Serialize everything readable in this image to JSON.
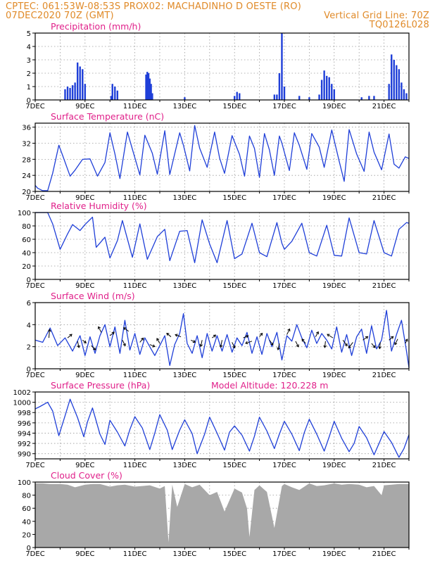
{
  "header": {
    "line1": "CPTEC:   061:53W-08:53S   PROX02: MACHADINHO D OESTE (RO)",
    "line2_left": "07DEC2020 70Z (GMT)",
    "line2_right": "Vertical Grid Line: 70Z",
    "line3_right": "TQ0126L028"
  },
  "colors": {
    "header": "#e08a28",
    "panel_title": "#e0208a",
    "series_line": "#1f3fd8",
    "cloud_fill": "#a8a8a8",
    "grid": "#9a9a9a",
    "axis": "#000000"
  },
  "chart_data": [
    {
      "type": "bar",
      "title": "Precipitation (mm/h)",
      "ylim": [
        0,
        5
      ],
      "yticks": [
        "0",
        "1",
        "2",
        "3",
        "4",
        "5"
      ],
      "xticks": [
        "7DEC",
        "9DEC",
        "11DEC",
        "13DEC",
        "15DEC",
        "17DEC",
        "19DEC",
        "21DEC"
      ],
      "x_range_days": [
        7,
        22
      ],
      "series": [
        {
          "x": [
            8.2,
            8.3,
            8.4,
            8.5,
            8.6,
            8.7,
            8.8,
            8.9,
            9.0,
            10.05,
            10.1,
            10.2,
            10.3,
            11.45,
            11.5,
            11.55,
            11.6,
            11.65,
            11.7,
            13.0,
            15.0,
            15.1,
            15.2,
            16.6,
            16.7,
            16.8,
            16.9,
            17.0,
            17.6,
            18.0,
            18.4,
            18.5,
            18.6,
            18.7,
            18.8,
            18.9,
            19.0,
            20.1,
            20.4,
            20.6,
            21.2,
            21.3,
            21.4,
            21.5,
            21.6,
            21.7,
            21.8,
            21.9
          ],
          "values": [
            0.8,
            1.0,
            0.9,
            1.1,
            1.3,
            2.8,
            2.5,
            2.3,
            1.2,
            0.3,
            1.2,
            1.0,
            0.7,
            1.9,
            2.1,
            2.0,
            1.6,
            1.2,
            0.5,
            0.2,
            0.3,
            0.6,
            0.5,
            0.4,
            0.4,
            2.0,
            5.0,
            1.0,
            0.3,
            0.2,
            0.4,
            1.5,
            2.2,
            1.8,
            1.7,
            1.2,
            0.8,
            0.2,
            0.3,
            0.3,
            1.2,
            3.4,
            3.0,
            2.6,
            2.3,
            1.3,
            0.8,
            0.5
          ]
        }
      ]
    },
    {
      "type": "line",
      "title": "Surface Temperature (nC)",
      "ylim": [
        20,
        37
      ],
      "yticks": [
        "20",
        "24",
        "28",
        "32",
        "36"
      ],
      "xticks": [
        "7DEC",
        "9DEC",
        "11DEC",
        "13DEC",
        "15DEC",
        "17DEC",
        "19DEC",
        "21DEC"
      ],
      "x_range_days": [
        7,
        22
      ],
      "series": [
        {
          "x": [
            7.0,
            7.1,
            7.3,
            7.5,
            7.7,
            7.95,
            8.1,
            8.4,
            8.6,
            8.9,
            9.2,
            9.5,
            9.8,
            10.0,
            10.2,
            10.4,
            10.7,
            10.9,
            11.2,
            11.4,
            11.7,
            11.9,
            12.2,
            12.4,
            12.8,
            12.95,
            13.2,
            13.4,
            13.6,
            13.9,
            14.2,
            14.4,
            14.6,
            14.9,
            15.2,
            15.4,
            15.6,
            15.8,
            16.0,
            16.2,
            16.4,
            16.6,
            16.8,
            16.9,
            17.2,
            17.4,
            17.6,
            17.9,
            18.1,
            18.4,
            18.6,
            18.9,
            19.2,
            19.4,
            19.6,
            19.9,
            20.2,
            20.4,
            20.6,
            20.9,
            21.2,
            21.4,
            21.6,
            21.85,
            22.0
          ],
          "values": [
            21.5,
            20.8,
            20.2,
            20.2,
            24.5,
            31.5,
            29.0,
            23.8,
            25.3,
            28.0,
            28.1,
            23.8,
            27.2,
            34.6,
            29.3,
            23.2,
            34.8,
            30.5,
            24.1,
            34.0,
            29.5,
            24.3,
            35.1,
            24.2,
            34.6,
            31.5,
            25.1,
            36.4,
            30.8,
            26.0,
            34.8,
            28.3,
            24.5,
            33.9,
            29.2,
            23.8,
            33.8,
            30.7,
            23.5,
            34.4,
            30.3,
            24.0,
            33.8,
            32.0,
            25.2,
            34.6,
            31.5,
            25.5,
            34.4,
            31.0,
            26.0,
            35.3,
            27.5,
            22.5,
            35.4,
            29.3,
            25.0,
            34.8,
            29.8,
            25.4,
            34.3,
            26.8,
            25.8,
            28.6,
            28.2
          ]
        }
      ]
    },
    {
      "type": "line",
      "title": "Relative Humidity (%)",
      "ylim": [
        0,
        100
      ],
      "yticks": [
        "0",
        "20",
        "40",
        "60",
        "80",
        "100"
      ],
      "xticks": [
        "7DEC",
        "9DEC",
        "11DEC",
        "13DEC",
        "15DEC",
        "17DEC",
        "19DEC",
        "21DEC"
      ],
      "x_range_days": [
        7,
        22
      ],
      "series": [
        {
          "x": [
            7.0,
            7.5,
            7.7,
            8.0,
            8.3,
            8.5,
            8.8,
            9.0,
            9.3,
            9.45,
            9.8,
            10.0,
            10.3,
            10.5,
            10.9,
            11.2,
            11.5,
            11.9,
            12.2,
            12.4,
            12.8,
            13.1,
            13.4,
            13.7,
            14.0,
            14.3,
            14.7,
            15.0,
            15.3,
            15.7,
            16.0,
            16.3,
            16.7,
            16.9,
            17.0,
            17.3,
            17.7,
            18.0,
            18.3,
            18.7,
            19.0,
            19.3,
            19.6,
            20.0,
            20.3,
            20.6,
            21.0,
            21.3,
            21.6,
            21.9,
            22.0
          ],
          "values": [
            100,
            100,
            83,
            45,
            68,
            82,
            73,
            82,
            93,
            48,
            63,
            32,
            58,
            88,
            33,
            83,
            30,
            64,
            75,
            28,
            72,
            73,
            25,
            89,
            53,
            25,
            88,
            31,
            38,
            84,
            40,
            34,
            85,
            54,
            45,
            57,
            84,
            40,
            35,
            81,
            36,
            35,
            92,
            40,
            38,
            88,
            40,
            35,
            75,
            85,
            84
          ]
        }
      ]
    },
    {
      "type": "line",
      "title": "Surface Wind (m/s)",
      "ylim": [
        0,
        6
      ],
      "yticks": [
        "0",
        "2",
        "4",
        "6"
      ],
      "xticks": [
        "7DEC",
        "9DEC",
        "11DEC",
        "13DEC",
        "15DEC",
        "17DEC",
        "19DEC",
        "21DEC"
      ],
      "x_range_days": [
        7,
        22
      ],
      "series": [
        {
          "x": [
            7.0,
            7.3,
            7.6,
            7.9,
            8.2,
            8.5,
            8.8,
            9.0,
            9.2,
            9.4,
            9.6,
            9.8,
            10.0,
            10.2,
            10.4,
            10.6,
            10.8,
            11.0,
            11.2,
            11.4,
            11.6,
            11.8,
            12.0,
            12.2,
            12.4,
            12.6,
            12.8,
            12.95,
            13.1,
            13.3,
            13.5,
            13.7,
            13.9,
            14.1,
            14.3,
            14.5,
            14.7,
            14.9,
            15.1,
            15.3,
            15.5,
            15.7,
            15.9,
            16.1,
            16.3,
            16.5,
            16.7,
            16.9,
            17.1,
            17.3,
            17.5,
            17.7,
            17.9,
            18.1,
            18.3,
            18.5,
            18.7,
            18.9,
            19.1,
            19.3,
            19.5,
            19.7,
            19.9,
            20.1,
            20.3,
            20.5,
            20.7,
            20.9,
            21.1,
            21.3,
            21.5,
            21.7,
            21.9,
            22.0
          ],
          "values": [
            2.6,
            2.4,
            3.7,
            2.1,
            2.8,
            1.6,
            3.0,
            1.2,
            2.9,
            1.4,
            3.0,
            4.0,
            2.0,
            3.8,
            1.4,
            4.4,
            1.7,
            3.2,
            1.3,
            2.8,
            2.0,
            1.2,
            2.1,
            3.0,
            0.3,
            2.2,
            3.2,
            5.0,
            2.3,
            1.4,
            3.0,
            1.0,
            3.2,
            1.6,
            3.0,
            1.6,
            3.1,
            1.5,
            2.8,
            2.1,
            3.3,
            1.4,
            2.9,
            1.3,
            3.2,
            2.0,
            3.3,
            0.8,
            3.0,
            2.5,
            4.0,
            2.8,
            1.9,
            3.5,
            2.3,
            3.2,
            2.6,
            1.8,
            3.8,
            1.5,
            3.1,
            1.2,
            2.9,
            3.6,
            1.4,
            3.9,
            1.8,
            2.6,
            5.3,
            1.6,
            3.1,
            4.4,
            1.6,
            0.1
          ]
        }
      ],
      "wind_vectors": [
        {
          "x": 7.55,
          "v": 2.8,
          "dx": 1,
          "dy": -12
        },
        {
          "x": 8.3,
          "v": 2.8,
          "dx": 6,
          "dy": -5
        },
        {
          "x": 8.7,
          "v": 2.5,
          "dx": 2,
          "dy": 9
        },
        {
          "x": 8.9,
          "v": 2.6,
          "dx": 5,
          "dy": 4
        },
        {
          "x": 9.25,
          "v": 2.1,
          "dx": 6,
          "dy": 6
        },
        {
          "x": 9.65,
          "v": 3.3,
          "dx": -4,
          "dy": -8
        },
        {
          "x": 10.0,
          "v": 3.0,
          "dx": 6,
          "dy": -5
        },
        {
          "x": 10.5,
          "v": 2.6,
          "dx": 4,
          "dy": 8
        },
        {
          "x": 10.75,
          "v": 3.4,
          "dx": -7,
          "dy": -5
        },
        {
          "x": 11.2,
          "v": 2.4,
          "dx": 5,
          "dy": -6
        },
        {
          "x": 11.6,
          "v": 2.2,
          "dx": 7,
          "dy": 3
        },
        {
          "x": 12.0,
          "v": 2.3,
          "dx": -4,
          "dy": -7
        },
        {
          "x": 12.45,
          "v": 2.9,
          "dx": -6,
          "dy": -5
        },
        {
          "x": 12.85,
          "v": 2.9,
          "dx": -8,
          "dy": -3
        },
        {
          "x": 13.25,
          "v": 2.6,
          "dx": 6,
          "dy": 3
        },
        {
          "x": 13.7,
          "v": 2.6,
          "dx": -2,
          "dy": 9
        },
        {
          "x": 14.1,
          "v": 2.8,
          "dx": 5,
          "dy": -4
        },
        {
          "x": 14.5,
          "v": 2.6,
          "dx": -2,
          "dy": 10
        },
        {
          "x": 14.9,
          "v": 2.4,
          "dx": 4,
          "dy": 8
        },
        {
          "x": 15.35,
          "v": 2.8,
          "dx": 7,
          "dy": -3
        },
        {
          "x": 15.7,
          "v": 2.5,
          "dx": -9,
          "dy": 3
        },
        {
          "x": 16.0,
          "v": 2.9,
          "dx": 4,
          "dy": -5
        },
        {
          "x": 16.4,
          "v": 2.6,
          "dx": 5,
          "dy": 7
        },
        {
          "x": 16.8,
          "v": 2.3,
          "dx": -2,
          "dy": 9
        },
        {
          "x": 17.1,
          "v": 3.1,
          "dx": 4,
          "dy": -8
        },
        {
          "x": 17.45,
          "v": 2.5,
          "dx": 4,
          "dy": 8
        },
        {
          "x": 17.85,
          "v": 2.3,
          "dx": -5,
          "dy": -6
        },
        {
          "x": 18.25,
          "v": 2.9,
          "dx": 4,
          "dy": -7
        },
        {
          "x": 18.65,
          "v": 2.5,
          "dx": -1,
          "dy": 9
        },
        {
          "x": 18.95,
          "v": 2.8,
          "dx": -8,
          "dy": -5
        },
        {
          "x": 19.35,
          "v": 2.6,
          "dx": 6,
          "dy": 8
        },
        {
          "x": 19.75,
          "v": 2.4,
          "dx": -6,
          "dy": 8
        },
        {
          "x": 20.15,
          "v": 2.6,
          "dx": 7,
          "dy": -5
        },
        {
          "x": 20.5,
          "v": 2.3,
          "dx": 5,
          "dy": 6
        },
        {
          "x": 20.85,
          "v": 2.4,
          "dx": -1,
          "dy": 9
        },
        {
          "x": 21.2,
          "v": 2.6,
          "dx": 6,
          "dy": -5
        },
        {
          "x": 21.55,
          "v": 2.7,
          "dx": -4,
          "dy": 8
        },
        {
          "x": 21.85,
          "v": 2.3,
          "dx": 3,
          "dy": -6
        }
      ]
    },
    {
      "type": "line",
      "title": "Surface Pressure (hPa)",
      "annotation": "Model Altitude: 120.228  m",
      "ylim": [
        989,
        1002
      ],
      "yticks": [
        "990",
        "992",
        "994",
        "996",
        "998",
        "1000",
        "1002"
      ],
      "xticks": [
        "7DEC",
        "9DEC",
        "11DEC",
        "13DEC",
        "15DEC",
        "17DEC",
        "19DEC",
        "21DEC"
      ],
      "x_range_days": [
        7,
        22
      ],
      "series": [
        {
          "x": [
            7.0,
            7.2,
            7.5,
            7.7,
            7.95,
            8.2,
            8.4,
            8.7,
            8.95,
            9.1,
            9.3,
            9.6,
            9.8,
            10.0,
            10.3,
            10.6,
            10.8,
            11.0,
            11.3,
            11.6,
            11.8,
            12.0,
            12.3,
            12.5,
            12.8,
            13.0,
            13.3,
            13.5,
            13.8,
            14.0,
            14.3,
            14.6,
            14.8,
            15.0,
            15.3,
            15.6,
            15.8,
            16.0,
            16.3,
            16.6,
            16.8,
            17.0,
            17.3,
            17.6,
            17.8,
            18.0,
            18.3,
            18.6,
            18.8,
            19.0,
            19.3,
            19.6,
            19.8,
            20.0,
            20.3,
            20.6,
            20.8,
            21.0,
            21.3,
            21.6,
            21.8,
            22.0
          ],
          "values": [
            998.7,
            999.2,
            1000.0,
            998.3,
            993.5,
            997.4,
            1000.6,
            997.0,
            993.3,
            996.2,
            998.9,
            993.8,
            991.8,
            996.5,
            994.2,
            991.5,
            994.7,
            997.2,
            995.0,
            990.8,
            994.0,
            997.6,
            994.6,
            990.8,
            994.6,
            996.6,
            993.9,
            990.0,
            993.8,
            997.1,
            994.0,
            990.7,
            994.2,
            995.4,
            993.6,
            990.5,
            993.4,
            997.1,
            994.4,
            991.0,
            993.8,
            996.3,
            993.8,
            990.6,
            994.1,
            996.7,
            993.8,
            990.5,
            993.3,
            996.3,
            993.0,
            990.4,
            992.0,
            995.3,
            993.1,
            989.8,
            992.0,
            994.3,
            992.2,
            989.3,
            991.0,
            993.7
          ]
        }
      ]
    },
    {
      "type": "area",
      "title": "Cloud Cover (%)",
      "ylim": [
        0,
        100
      ],
      "yticks": [
        "0",
        "20",
        "40",
        "60",
        "80",
        "100"
      ],
      "xticks": [
        "7DEC",
        "9DEC",
        "11DEC",
        "13DEC",
        "15DEC",
        "17DEC",
        "19DEC",
        "21DEC"
      ],
      "x_range_days": [
        7,
        22
      ],
      "series": [
        {
          "x": [
            7.0,
            7.3,
            7.6,
            8.0,
            8.3,
            8.6,
            9.0,
            9.3,
            9.6,
            10.0,
            10.3,
            10.6,
            11.0,
            11.3,
            11.6,
            12.0,
            12.2,
            12.35,
            12.5,
            12.7,
            13.0,
            13.3,
            13.6,
            14.0,
            14.3,
            14.6,
            15.0,
            15.3,
            15.5,
            15.6,
            15.8,
            16.0,
            16.3,
            16.6,
            16.9,
            17.0,
            17.3,
            17.6,
            18.0,
            18.3,
            18.6,
            19.0,
            19.3,
            19.6,
            20.0,
            20.3,
            20.6,
            20.9,
            21.0,
            21.3,
            21.6,
            22.0
          ],
          "values": [
            98,
            98,
            97,
            97,
            96,
            92,
            96,
            97,
            97,
            93,
            95,
            96,
            93,
            94,
            95,
            90,
            94,
            8,
            96,
            62,
            97,
            92,
            96,
            80,
            85,
            55,
            90,
            84,
            60,
            16,
            88,
            95,
            85,
            30,
            94,
            97,
            92,
            88,
            98,
            94,
            95,
            98,
            96,
            97,
            96,
            92,
            94,
            80,
            95,
            96,
            97,
            97
          ]
        }
      ]
    }
  ]
}
